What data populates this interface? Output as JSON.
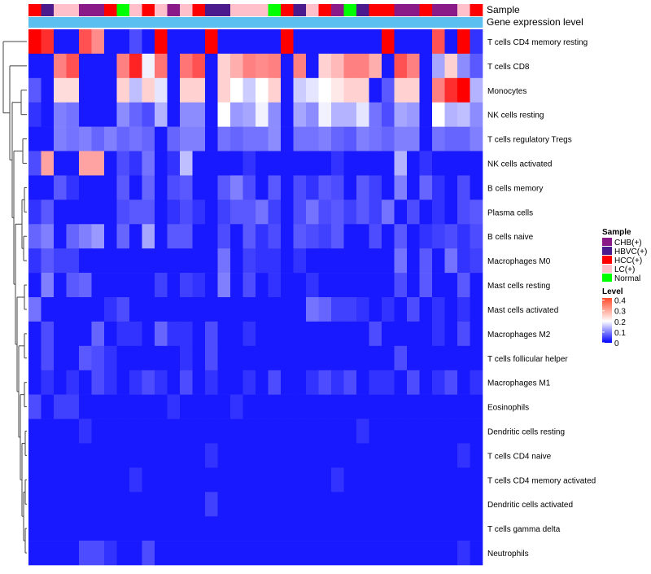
{
  "chart_data": {
    "type": "heatmap",
    "title": "",
    "annotation_labels": [
      "Sample",
      "Gene expression level"
    ],
    "rows": [
      "T cells CD4 memory resting",
      "T cells CD8",
      "Monocytes",
      "NK cells resting",
      "T cells regulatory  Tregs",
      "NK cells activated",
      "B cells memory",
      "Plasma cells",
      "B cells naive",
      "Macrophages M0",
      "Mast cells resting",
      "Mast cells activated",
      "Macrophages M2",
      "T cells follicular helper",
      "Macrophages M1",
      "Eosinophils",
      "Dendritic cells resting",
      "T cells CD4 naive",
      "T cells CD4 memory activated",
      "Dendritic cells activated",
      "T cells gamma delta",
      "Neutrophils"
    ],
    "sample_groups": [
      "HCC(+)",
      "HBVC(+)",
      "LC(+)",
      "LC(+)",
      "CHB(+)",
      "CHB(+)",
      "HCC(+)",
      "Normal",
      "LC(+)",
      "HCC(+)",
      "LC(+)",
      "CHB(+)",
      "LC(+)",
      "HCC(+)",
      "HBVC(+)",
      "HBVC(+)",
      "LC(+)",
      "LC(+)",
      "LC(+)",
      "Normal",
      "HCC(+)",
      "HBVC(+)",
      "LC(+)",
      "HCC(+)",
      "CHB(+)",
      "Normal",
      "HBVC(+)",
      "HCC(+)",
      "HCC(+)",
      "CHB(+)",
      "CHB(+)",
      "HCC(+)",
      "CHB(+)",
      "CHB(+)",
      "LC(+)",
      "HCC(+)"
    ],
    "expression_levels": [
      0.05,
      0.05,
      0.05,
      0.05,
      0.05,
      0.05,
      0.05,
      0.05,
      0.05,
      0.05,
      0.05,
      0.05,
      0.05,
      0.05,
      0.05,
      0.05,
      0.05,
      0.05,
      0.05,
      0.05,
      0.05,
      0.05,
      0.05,
      0.05,
      0.05,
      0.05,
      0.05,
      0.05,
      0.05,
      0.05,
      0.05,
      0.05,
      0.05,
      0.05,
      0.05,
      0.05
    ],
    "values": [
      [
        0.42,
        0.38,
        0.02,
        0.02,
        0.35,
        0.3,
        0.02,
        0.02,
        0.06,
        0.02,
        0.42,
        0.02,
        0.02,
        0.02,
        0.42,
        0.02,
        0.02,
        0.02,
        0.02,
        0.02,
        0.42,
        0.02,
        0.02,
        0.02,
        0.02,
        0.02,
        0.02,
        0.02,
        0.42,
        0.02,
        0.02,
        0.02,
        0.35,
        0.02,
        0.42,
        0.04
      ],
      [
        0.02,
        0.02,
        0.31,
        0.35,
        0.02,
        0.02,
        0.02,
        0.31,
        0.39,
        0.19,
        0.32,
        0.02,
        0.32,
        0.35,
        0.02,
        0.24,
        0.27,
        0.31,
        0.3,
        0.31,
        0.02,
        0.31,
        0.02,
        0.24,
        0.26,
        0.31,
        0.31,
        0.27,
        0.02,
        0.35,
        0.31,
        0.02,
        0.13,
        0.24,
        0.11,
        0.07
      ],
      [
        0.07,
        0.02,
        0.23,
        0.23,
        0.02,
        0.02,
        0.02,
        0.24,
        0.15,
        0.24,
        0.18,
        0.02,
        0.24,
        0.24,
        0.02,
        0.24,
        0.2,
        0.16,
        0.2,
        0.24,
        0.02,
        0.16,
        0.18,
        0.2,
        0.22,
        0.24,
        0.24,
        0.02,
        0.07,
        0.24,
        0.24,
        0.02,
        0.31,
        0.38,
        0.42,
        0.14
      ],
      [
        0.04,
        0.02,
        0.1,
        0.09,
        0.02,
        0.02,
        0.02,
        0.11,
        0.08,
        0.06,
        0.14,
        0.02,
        0.11,
        0.11,
        0.02,
        0.2,
        0.12,
        0.13,
        0.19,
        0.11,
        0.02,
        0.13,
        0.11,
        0.19,
        0.14,
        0.14,
        0.18,
        0.09,
        0.06,
        0.13,
        0.12,
        0.02,
        0.2,
        0.14,
        0.15,
        0.11
      ],
      [
        0.02,
        0.02,
        0.1,
        0.09,
        0.1,
        0.08,
        0.1,
        0.08,
        0.09,
        0.08,
        0.02,
        0.08,
        0.1,
        0.1,
        0.02,
        0.09,
        0.08,
        0.09,
        0.09,
        0.11,
        0.02,
        0.09,
        0.09,
        0.1,
        0.08,
        0.07,
        0.1,
        0.09,
        0.08,
        0.1,
        0.1,
        0.02,
        0.09,
        0.08,
        0.08,
        0.1
      ],
      [
        0.06,
        0.28,
        0.02,
        0.02,
        0.28,
        0.28,
        0.02,
        0.06,
        0.04,
        0.09,
        0.02,
        0.04,
        0.15,
        0.02,
        0.02,
        0.02,
        0.02,
        0.04,
        0.02,
        0.02,
        0.02,
        0.02,
        0.02,
        0.02,
        0.04,
        0.02,
        0.02,
        0.02,
        0.02,
        0.14,
        0.02,
        0.04,
        0.02,
        0.02,
        0.02,
        0.02
      ],
      [
        0.02,
        0.02,
        0.07,
        0.04,
        0.02,
        0.02,
        0.02,
        0.07,
        0.02,
        0.08,
        0.02,
        0.06,
        0.07,
        0.02,
        0.02,
        0.07,
        0.1,
        0.06,
        0.02,
        0.07,
        0.02,
        0.06,
        0.04,
        0.07,
        0.06,
        0.02,
        0.07,
        0.05,
        0.02,
        0.1,
        0.02,
        0.08,
        0.04,
        0.02,
        0.06,
        0.02
      ],
      [
        0.04,
        0.07,
        0.02,
        0.02,
        0.02,
        0.02,
        0.02,
        0.06,
        0.07,
        0.07,
        0.02,
        0.04,
        0.06,
        0.04,
        0.02,
        0.05,
        0.07,
        0.07,
        0.09,
        0.05,
        0.02,
        0.06,
        0.09,
        0.06,
        0.07,
        0.05,
        0.07,
        0.05,
        0.09,
        0.02,
        0.06,
        0.02,
        0.04,
        0.02,
        0.06,
        0.07
      ],
      [
        0.08,
        0.1,
        0.02,
        0.08,
        0.1,
        0.12,
        0.02,
        0.08,
        0.02,
        0.13,
        0.02,
        0.07,
        0.07,
        0.02,
        0.02,
        0.06,
        0.02,
        0.07,
        0.04,
        0.06,
        0.02,
        0.07,
        0.06,
        0.05,
        0.07,
        0.02,
        0.02,
        0.06,
        0.02,
        0.07,
        0.02,
        0.04,
        0.05,
        0.06,
        0.04,
        0.06
      ],
      [
        0.04,
        0.07,
        0.05,
        0.05,
        0.02,
        0.02,
        0.02,
        0.02,
        0.02,
        0.02,
        0.02,
        0.02,
        0.02,
        0.02,
        0.02,
        0.09,
        0.02,
        0.05,
        0.04,
        0.04,
        0.02,
        0.04,
        0.02,
        0.02,
        0.02,
        0.02,
        0.02,
        0.02,
        0.02,
        0.09,
        0.02,
        0.07,
        0.02,
        0.09,
        0.04,
        0.05
      ],
      [
        0.02,
        0.1,
        0.02,
        0.07,
        0.08,
        0.02,
        0.02,
        0.02,
        0.02,
        0.02,
        0.05,
        0.02,
        0.05,
        0.04,
        0.02,
        0.1,
        0.02,
        0.06,
        0.02,
        0.04,
        0.02,
        0.02,
        0.04,
        0.02,
        0.02,
        0.02,
        0.02,
        0.02,
        0.02,
        0.06,
        0.02,
        0.07,
        0.02,
        0.02,
        0.07,
        0.02
      ],
      [
        0.09,
        0.02,
        0.02,
        0.02,
        0.02,
        0.02,
        0.04,
        0.06,
        0.02,
        0.02,
        0.02,
        0.02,
        0.02,
        0.02,
        0.02,
        0.02,
        0.02,
        0.02,
        0.02,
        0.02,
        0.02,
        0.02,
        0.09,
        0.08,
        0.05,
        0.05,
        0.04,
        0.02,
        0.04,
        0.02,
        0.06,
        0.02,
        0.04,
        0.02,
        0.04,
        0.02
      ],
      [
        0.02,
        0.06,
        0.02,
        0.02,
        0.02,
        0.08,
        0.02,
        0.04,
        0.04,
        0.02,
        0.08,
        0.04,
        0.04,
        0.02,
        0.06,
        0.02,
        0.02,
        0.04,
        0.02,
        0.02,
        0.02,
        0.02,
        0.02,
        0.02,
        0.02,
        0.02,
        0.02,
        0.06,
        0.02,
        0.02,
        0.02,
        0.02,
        0.04,
        0.02,
        0.06,
        0.02
      ],
      [
        0.02,
        0.06,
        0.02,
        0.02,
        0.07,
        0.06,
        0.04,
        0.02,
        0.02,
        0.02,
        0.02,
        0.02,
        0.04,
        0.02,
        0.06,
        0.02,
        0.02,
        0.02,
        0.02,
        0.02,
        0.02,
        0.02,
        0.02,
        0.02,
        0.02,
        0.02,
        0.02,
        0.02,
        0.02,
        0.06,
        0.02,
        0.02,
        0.02,
        0.02,
        0.02,
        0.02
      ],
      [
        0.02,
        0.04,
        0.02,
        0.04,
        0.02,
        0.06,
        0.04,
        0.02,
        0.04,
        0.06,
        0.04,
        0.02,
        0.06,
        0.02,
        0.04,
        0.02,
        0.02,
        0.04,
        0.02,
        0.06,
        0.02,
        0.02,
        0.04,
        0.06,
        0.04,
        0.06,
        0.02,
        0.04,
        0.04,
        0.02,
        0.06,
        0.02,
        0.04,
        0.06,
        0.02,
        0.04
      ],
      [
        0.06,
        0.02,
        0.05,
        0.05,
        0.02,
        0.02,
        0.02,
        0.02,
        0.02,
        0.02,
        0.02,
        0.04,
        0.02,
        0.02,
        0.02,
        0.02,
        0.04,
        0.02,
        0.02,
        0.02,
        0.02,
        0.02,
        0.02,
        0.02,
        0.02,
        0.02,
        0.02,
        0.02,
        0.02,
        0.02,
        0.02,
        0.02,
        0.02,
        0.02,
        0.02,
        0.02
      ],
      [
        0.02,
        0.02,
        0.02,
        0.02,
        0.04,
        0.02,
        0.02,
        0.02,
        0.02,
        0.02,
        0.02,
        0.02,
        0.02,
        0.02,
        0.02,
        0.02,
        0.02,
        0.02,
        0.02,
        0.02,
        0.02,
        0.02,
        0.02,
        0.02,
        0.02,
        0.02,
        0.04,
        0.02,
        0.02,
        0.02,
        0.02,
        0.02,
        0.02,
        0.02,
        0.02,
        0.02
      ],
      [
        0.02,
        0.02,
        0.02,
        0.02,
        0.02,
        0.02,
        0.02,
        0.02,
        0.02,
        0.02,
        0.02,
        0.02,
        0.02,
        0.02,
        0.04,
        0.02,
        0.02,
        0.02,
        0.02,
        0.02,
        0.02,
        0.02,
        0.02,
        0.02,
        0.02,
        0.02,
        0.02,
        0.02,
        0.02,
        0.02,
        0.02,
        0.02,
        0.02,
        0.02,
        0.04,
        0.02
      ],
      [
        0.02,
        0.02,
        0.02,
        0.02,
        0.02,
        0.02,
        0.02,
        0.02,
        0.04,
        0.02,
        0.02,
        0.02,
        0.02,
        0.02,
        0.02,
        0.02,
        0.02,
        0.02,
        0.02,
        0.02,
        0.02,
        0.02,
        0.02,
        0.02,
        0.04,
        0.02,
        0.02,
        0.02,
        0.02,
        0.02,
        0.02,
        0.02,
        0.02,
        0.02,
        0.02,
        0.02
      ],
      [
        0.02,
        0.02,
        0.02,
        0.02,
        0.02,
        0.02,
        0.02,
        0.02,
        0.02,
        0.02,
        0.02,
        0.02,
        0.02,
        0.02,
        0.05,
        0.02,
        0.02,
        0.02,
        0.02,
        0.02,
        0.02,
        0.02,
        0.02,
        0.02,
        0.02,
        0.02,
        0.02,
        0.02,
        0.02,
        0.02,
        0.02,
        0.02,
        0.02,
        0.02,
        0.02,
        0.02
      ],
      [
        0.02,
        0.02,
        0.02,
        0.02,
        0.02,
        0.02,
        0.02,
        0.02,
        0.02,
        0.02,
        0.02,
        0.02,
        0.02,
        0.02,
        0.02,
        0.02,
        0.02,
        0.02,
        0.02,
        0.02,
        0.02,
        0.02,
        0.02,
        0.02,
        0.02,
        0.02,
        0.02,
        0.02,
        0.02,
        0.02,
        0.02,
        0.02,
        0.02,
        0.02,
        0.02,
        0.02
      ],
      [
        0.02,
        0.02,
        0.02,
        0.02,
        0.06,
        0.06,
        0.04,
        0.02,
        0.02,
        0.06,
        0.02,
        0.02,
        0.02,
        0.02,
        0.02,
        0.02,
        0.02,
        0.02,
        0.02,
        0.02,
        0.02,
        0.02,
        0.02,
        0.02,
        0.02,
        0.02,
        0.02,
        0.02,
        0.02,
        0.02,
        0.02,
        0.02,
        0.02,
        0.02,
        0.04,
        0.02
      ]
    ],
    "legend": {
      "sample_title": "Sample",
      "sample_entries": [
        {
          "label": "CHB(+)",
          "color": "#8B1A89"
        },
        {
          "label": "HBVC(+)",
          "color": "#4B1A8C"
        },
        {
          "label": "HCC(+)",
          "color": "#FF0000"
        },
        {
          "label": "LC(+)",
          "color": "#FFC0CB"
        },
        {
          "label": "Normal",
          "color": "#00FF00"
        }
      ],
      "level_title": "Level",
      "level_ticks": [
        "0.4",
        "0.3",
        "0.2",
        "0.1",
        "0"
      ],
      "level_tick_values": [
        0.4,
        0.3,
        0.2,
        0.1,
        0
      ]
    },
    "color_scale": {
      "low": "#0000FF",
      "mid": "#FFFFFF",
      "high": "#FF0000",
      "min": 0,
      "mid_value": 0.2,
      "max": 0.42
    },
    "expression_color": "#5BC0F0"
  }
}
